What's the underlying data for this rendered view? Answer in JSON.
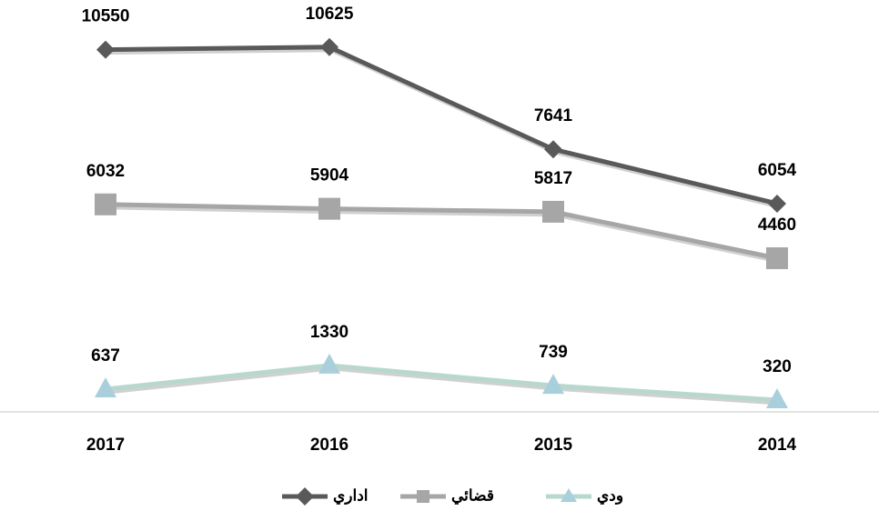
{
  "chart_data": {
    "type": "line",
    "categories": [
      "2017",
      "2016",
      "2015",
      "2014"
    ],
    "series": [
      {
        "name": "اداري",
        "color": "#595959",
        "marker": "diamond",
        "values": [
          10550,
          10625,
          7641,
          6054
        ]
      },
      {
        "name": "قضائي",
        "color": "#a6a6a6",
        "marker": "square",
        "values": [
          6032,
          5904,
          5817,
          4460
        ]
      },
      {
        "name": "ودي",
        "color": "#b8d8cf",
        "marker": "triangle",
        "values": [
          637,
          1330,
          739,
          320
        ]
      }
    ],
    "ylim": [
      0,
      12000
    ],
    "legend": "bottom"
  }
}
